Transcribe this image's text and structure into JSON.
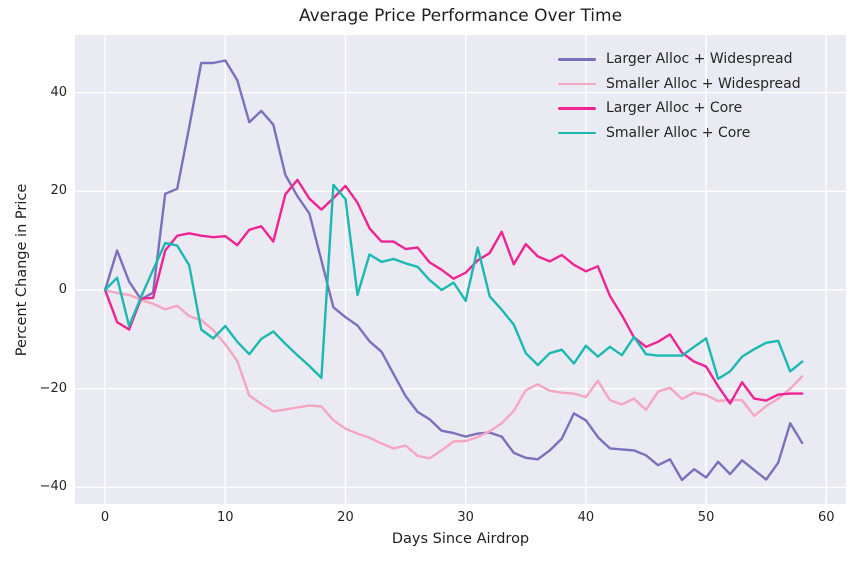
{
  "colors": {
    "figure_background": "#ffffff",
    "plot_background": "#eaeaf2",
    "grid": "#ffffff",
    "text": "#262626"
  },
  "axes": {
    "xlim": [
      -2.5,
      61.64
    ],
    "ylim": [
      -43.36,
      51.67
    ],
    "x_ticks": [
      0,
      10,
      20,
      30,
      40,
      50,
      60
    ],
    "x_tick_labels": [
      "0",
      "10",
      "20",
      "30",
      "40",
      "50",
      "60"
    ],
    "y_ticks": [
      -40,
      -20,
      0,
      20,
      40
    ],
    "y_tick_labels": [
      "−40",
      "−20",
      "0",
      "20",
      "40"
    ]
  },
  "chart_data": {
    "type": "line",
    "title": "Average Price Performance Over Time",
    "xlabel": "Days Since Airdrop",
    "ylabel": "Percent Change in Price",
    "grid": true,
    "legend_position": "upper right",
    "x": [
      0,
      1,
      2,
      3,
      4,
      5,
      6,
      7,
      8,
      9,
      10,
      11,
      12,
      13,
      14,
      15,
      16,
      17,
      18,
      19,
      20,
      21,
      22,
      23,
      24,
      25,
      26,
      27,
      28,
      29,
      30,
      31,
      32,
      33,
      34,
      35,
      36,
      37,
      38,
      39,
      40,
      41,
      42,
      43,
      44,
      45,
      46,
      47,
      48,
      49,
      50,
      51,
      52,
      53,
      54,
      55,
      56,
      57,
      58
    ],
    "series": [
      {
        "name": "Larger Alloc + Widespread",
        "color": "#7c70bd",
        "values": [
          0,
          8,
          1.7,
          -1.9,
          -0.5,
          19.5,
          20.5,
          33,
          46,
          46,
          46.5,
          42.5,
          34,
          36.3,
          33.5,
          23.3,
          19,
          15.5,
          6,
          -3.5,
          -5.5,
          -7.2,
          -10.4,
          -12.5,
          -17,
          -21.5,
          -24.7,
          -26.2,
          -28.5,
          -29,
          -29.7,
          -29.1,
          -28.9,
          -29.7,
          -33,
          -34,
          -34.3,
          -32.5,
          -30.1,
          -25,
          -26.4,
          -29.8,
          -32.1,
          -32.3,
          -32.5,
          -33.5,
          -35.5,
          -34.3,
          -38.5,
          -36.3,
          -38,
          -34.8,
          -37.3,
          -34.5,
          -36.5,
          -38.4,
          -35,
          -27,
          -31
        ]
      },
      {
        "name": "Smaller Alloc + Widespread",
        "color": "#f5a6c1",
        "values": [
          0,
          -0.6,
          -1,
          -2,
          -2.8,
          -3.9,
          -3.2,
          -5.3,
          -6.1,
          -8.1,
          -11,
          -14.4,
          -21.4,
          -23.1,
          -24.6,
          -24.2,
          -23.8,
          -23.4,
          -23.6,
          -26.4,
          -28.1,
          -29.1,
          -29.9,
          -31.1,
          -32.1,
          -31.5,
          -33.6,
          -34.1,
          -32.5,
          -30.7,
          -30.6,
          -29.8,
          -28.6,
          -27,
          -24.5,
          -20.3,
          -19.1,
          -20.4,
          -20.8,
          -21,
          -21.7,
          -18.4,
          -22.3,
          -23.2,
          -22,
          -24.3,
          -20.6,
          -19.8,
          -22.1,
          -20.8,
          -21.3,
          -22.5,
          -22.3,
          -22.3,
          -25.5,
          -23.5,
          -22,
          -20,
          -17.5
        ]
      },
      {
        "name": "Larger Alloc + Core",
        "color": "#ee2492",
        "values": [
          0,
          -6.5,
          -8,
          -1.7,
          -1.6,
          8,
          11,
          11.5,
          11,
          10.7,
          10.9,
          9.1,
          12.2,
          12.9,
          9.8,
          19.4,
          22.3,
          18.5,
          16.3,
          18.6,
          21.1,
          17.7,
          12.5,
          9.8,
          9.8,
          8.3,
          8.6,
          5.6,
          4.1,
          2.3,
          3.5,
          6,
          7.5,
          11.8,
          5.2,
          9.3,
          6.8,
          5.8,
          7.1,
          5.1,
          3.8,
          4.8,
          -1.2,
          -5.1,
          -9.6,
          -11.5,
          -10.5,
          -9,
          -12.7,
          -14.5,
          -15.5,
          -19.5,
          -23,
          -18.7,
          -22,
          -22.4,
          -21.2,
          -21,
          -21
        ]
      },
      {
        "name": "Smaller Alloc + Core",
        "color": "#1cb9b3",
        "values": [
          0,
          2.5,
          -7.3,
          -1.4,
          4.1,
          9.5,
          9,
          5,
          -8,
          -9.8,
          -7.3,
          -10.5,
          -13,
          -9.9,
          -8.4,
          -10.9,
          -13.2,
          -15.4,
          -17.8,
          21.3,
          18.4,
          -1,
          7.2,
          5.7,
          6.3,
          5.4,
          4.7,
          2,
          0,
          1.5,
          -2.2,
          8.6,
          -1.3,
          -4,
          -7,
          -12.8,
          -15.2,
          -12.8,
          -12.1,
          -14.9,
          -11.3,
          -13.5,
          -11.5,
          -13.2,
          -9.5,
          -13,
          -13.3,
          -13.3,
          -13.3,
          -11.5,
          -9.8,
          -18,
          -16.5,
          -13.5,
          -12,
          -10.7,
          -10.3,
          -16.5,
          -14.5
        ]
      }
    ]
  }
}
